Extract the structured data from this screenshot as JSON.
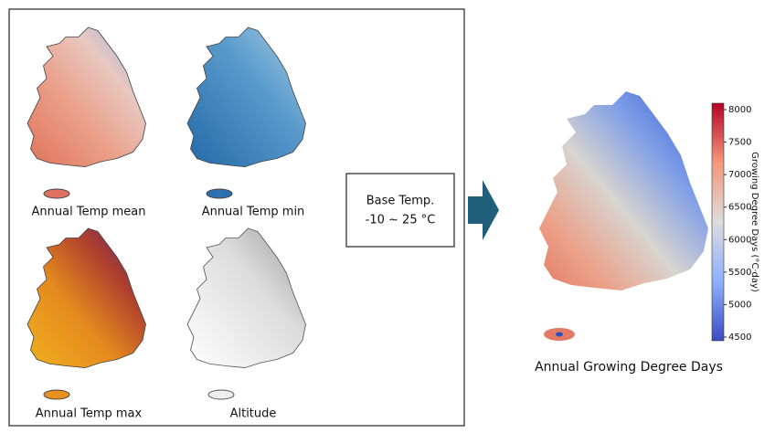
{
  "inputs": [
    {
      "label": "Annual Temp mean"
    },
    {
      "label": "Annual Temp min"
    },
    {
      "label": "Annual Temp max"
    },
    {
      "label": "Altitude"
    }
  ],
  "process": {
    "line1": "Base Temp.",
    "line2": "-10 ~ 25 °C"
  },
  "output": {
    "label": "Annual Growing Degree Days",
    "colorbar": {
      "label": "Growing Degree Days (°C·day)",
      "ticks": [
        8000,
        7500,
        7000,
        6500,
        6000,
        5500,
        5000,
        4500
      ]
    }
  }
}
